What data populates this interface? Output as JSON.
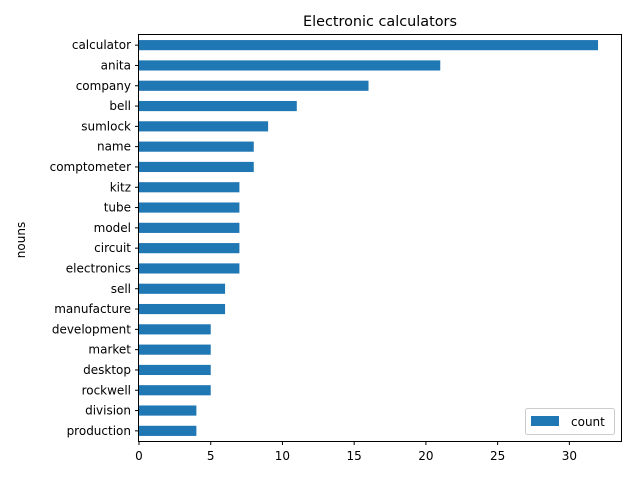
{
  "chart_data": {
    "type": "bar",
    "orientation": "horizontal",
    "title": "Electronic calculators",
    "xlabel": "",
    "ylabel": "nouns",
    "xlim": [
      0,
      33.6
    ],
    "xticks": [
      0,
      5,
      10,
      15,
      20,
      25,
      30
    ],
    "grid": false,
    "legend_position": "lower-right",
    "bar_color": "#1f77b4",
    "categories": [
      "calculator",
      "anita",
      "company",
      "bell",
      "sumlock",
      "name",
      "comptometer",
      "kitz",
      "tube",
      "model",
      "circuit",
      "electronics",
      "sell",
      "manufacture",
      "development",
      "market",
      "desktop",
      "rockwell",
      "division",
      "production"
    ],
    "series": [
      {
        "name": "count",
        "values": [
          32,
          21,
          16,
          11,
          9,
          8,
          8,
          7,
          7,
          7,
          7,
          7,
          6,
          6,
          5,
          5,
          5,
          5,
          4,
          4
        ]
      }
    ]
  }
}
